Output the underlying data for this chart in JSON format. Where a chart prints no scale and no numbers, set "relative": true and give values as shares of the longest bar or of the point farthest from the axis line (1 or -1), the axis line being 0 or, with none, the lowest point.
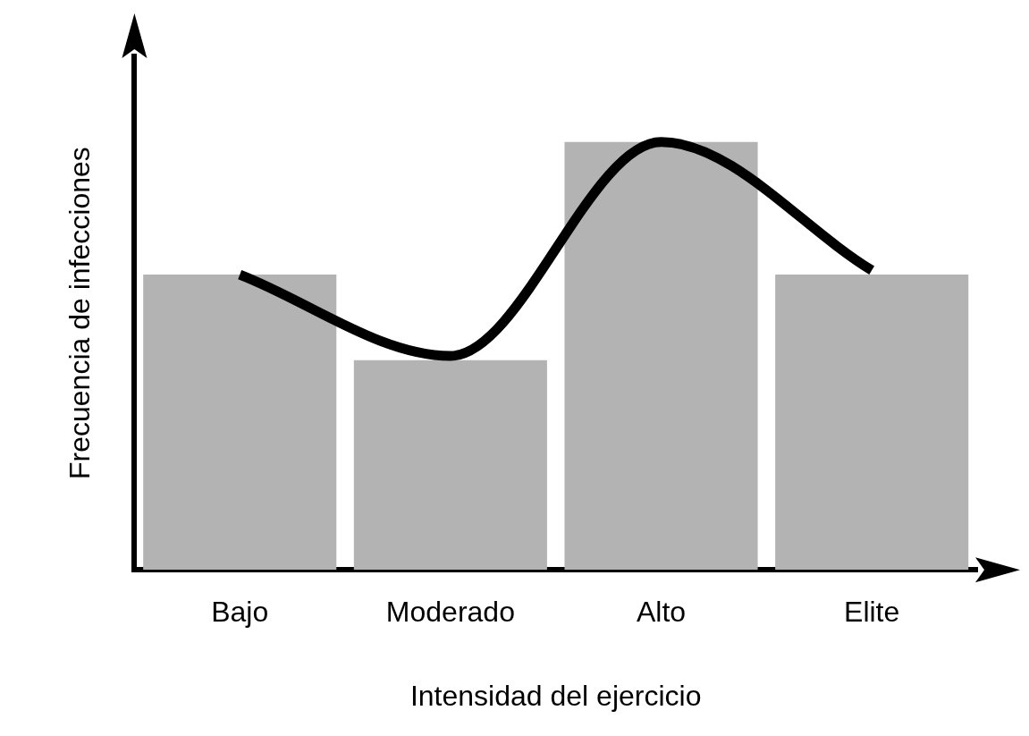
{
  "chart_data": {
    "type": "bar",
    "relative": true,
    "xlabel": "Intensidad del ejercicio",
    "ylabel": "Frecuencia de infecciones",
    "categories": [
      "Bajo",
      "Moderado",
      "Alto",
      "Elite"
    ],
    "series": [
      {
        "color": "#b3b3b3",
        "values": [
          0.69,
          0.49,
          1.0,
          0.69
        ]
      },
      {
        "type": "line",
        "color": "#000000",
        "values": [
          0.69,
          0.5,
          1.0,
          0.7
        ]
      }
    ],
    "grid": false,
    "legend": false,
    "marker": "none",
    "line_style": "solid"
  }
}
